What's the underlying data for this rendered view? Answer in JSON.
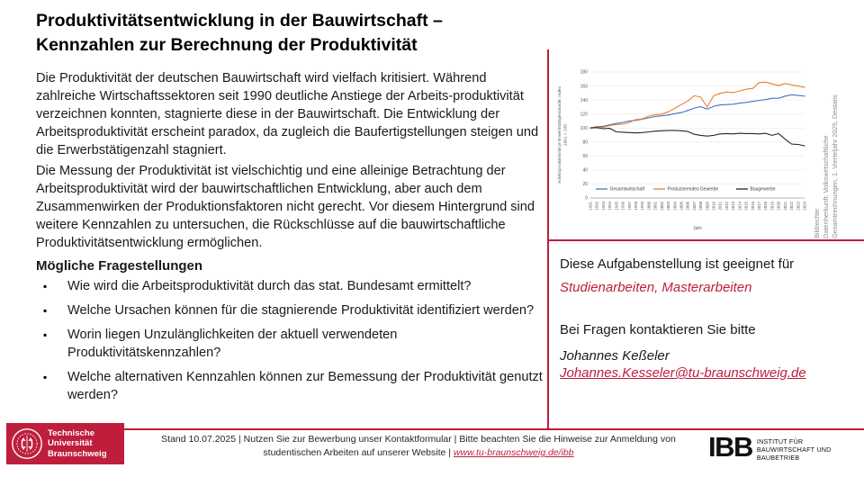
{
  "accent_red": "#be1e3c",
  "title": {
    "line1": "Produktivitätsentwicklung in der Bauwirtschaft –",
    "line2": "Kennzahlen zur Berechnung der Produktivität"
  },
  "intro": {
    "para1": "Die Produktivität der deutschen Bauwirtschaft wird vielfach kritisiert. Während zahlreiche Wirtschaftssektoren seit 1990 deutliche Anstiege der Arbeits-produktivität verzeichnen konnten, stagnierte diese in der Bauwirtschaft. Die Entwicklung der Arbeitsproduktivität erscheint paradox, da zugleich die Baufertigstellungen steigen und die Erwerbstätigenzahl stagniert.",
    "para2": "Die Messung der Produktivität ist vielschichtig und eine alleinige Betrachtung der Arbeitsproduktivität wird der bauwirtschaftlichen Entwicklung, aber auch dem Zusammenwirken der Produktionsfaktoren nicht gerecht. Vor diesem Hintergrund sind weitere Kennzahlen zu untersuchen, die Rückschlüsse auf die bauwirtschaftliche Produktivitätsentwicklung ermöglichen."
  },
  "questions": {
    "heading": "Mögliche Fragestellungen",
    "items": [
      "Wie wird die Arbeitsproduktivität durch das stat. Bundesamt ermittelt?",
      "Welche Ursachen können für die stagnierende Produktivität identifiziert werden?",
      "Worin liegen Unzulänglichkeiten der aktuell verwendeten Produktivitätskennzahlen?",
      "Welche alternativen Kennzahlen können zur Bemessung der Produktivität genutzt werden?"
    ]
  },
  "chart_data": {
    "type": "line",
    "xlabel": "Jahr",
    "ylabel_lines": [
      "Arbeitsproduktivität je Erwerbstätigenstunde; Index",
      "1991 = 100"
    ],
    "ylim": [
      0,
      180
    ],
    "ytick_step": 20,
    "grid": true,
    "legend_position": "bottom-inside",
    "x": [
      1991,
      1992,
      1993,
      1994,
      1995,
      1996,
      1997,
      1998,
      1999,
      2000,
      2001,
      2002,
      2003,
      2004,
      2005,
      2006,
      2007,
      2008,
      2009,
      2010,
      2011,
      2012,
      2013,
      2014,
      2015,
      2016,
      2017,
      2018,
      2019,
      2020,
      2021,
      2022,
      2023,
      2024
    ],
    "series": [
      {
        "name": "Gesamtwirtschaft",
        "color": "#4472c4",
        "values": [
          100,
          102,
          102.5,
          104.5,
          106.5,
          108,
          110,
          111,
          112.5,
          114.5,
          116.5,
          117.5,
          118.5,
          120.5,
          122,
          125,
          128.5,
          130.5,
          127,
          131,
          133,
          133.5,
          134,
          135.5,
          136.5,
          138,
          139.5,
          140.5,
          142.5,
          142.5,
          145.5,
          147.5,
          146.5,
          145.5
        ]
      },
      {
        "name": "Produzierendes Gewerbe",
        "color": "#ed7d31",
        "values": [
          100,
          101.5,
          101,
          103.5,
          105,
          105.5,
          108,
          112,
          113,
          117,
          119,
          120,
          123,
          128,
          133.5,
          138.5,
          146,
          144,
          130,
          146,
          149.5,
          151.5,
          150.5,
          153,
          155.5,
          156.5,
          165,
          165.5,
          163,
          160.5,
          163.5,
          161.5,
          160,
          158
        ]
      },
      {
        "name": "Baugewerbe",
        "color": "#262626",
        "values": [
          100,
          100.5,
          99,
          99.5,
          94.5,
          94,
          93.5,
          93,
          93.5,
          94.5,
          95.5,
          96,
          96.5,
          96.5,
          96,
          95,
          91,
          89.5,
          88.5,
          89.5,
          91.5,
          92,
          91.5,
          92.5,
          92,
          92,
          91.5,
          92.5,
          89.5,
          92,
          84,
          77,
          76.5,
          74.5
        ]
      }
    ]
  },
  "chart_caption": {
    "lines": [
      "Bildrechte:",
      "Datenherkunft: Volkswirtschaftliche",
      "Gesamtrechnungen, 1. Vierteljahr 2025, Destatis"
    ]
  },
  "suitability": {
    "intro": "Diese Aufgabenstellung ist geeignet für",
    "types": "Studienarbeiten, Masterarbeiten"
  },
  "contact": {
    "intro": "Bei Fragen kontaktieren Sie bitte",
    "name": "Johannes Keßeler",
    "email": "Johannes.Kesseler@tu-braunschweig.de"
  },
  "footer": {
    "text_before": "Stand 10.07.2025 | Nutzen Sie zur Bewerbung unser Kontaktformular | Bitte beachten Sie die Hinweise zur Anmeldung von studentischen Arbeiten auf unserer Website | ",
    "link": "www.tu-braunschweig.de/ibb"
  },
  "logos": {
    "tu": {
      "line1": "Technische",
      "line2": "Universität",
      "line3": "Braunschweig"
    },
    "ibb": {
      "abbr": "IBB",
      "name_lines": [
        "INSTITUT FÜR",
        "BAUWIRTSCHAFT UND",
        "BAUBETRIEB"
      ]
    }
  }
}
